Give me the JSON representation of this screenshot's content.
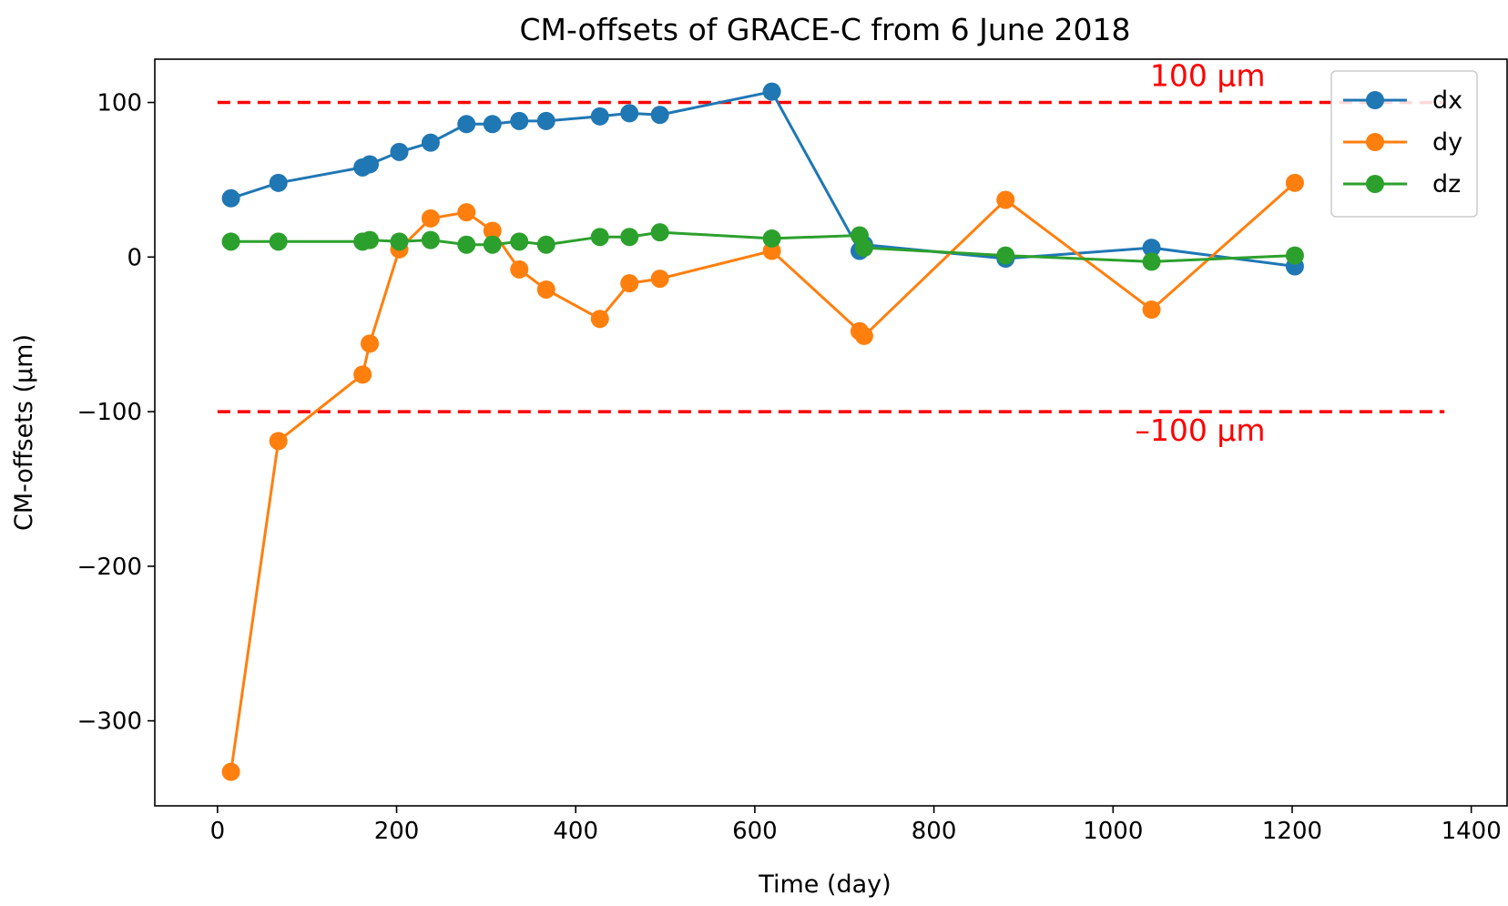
{
  "chart_data": {
    "type": "line",
    "title": "CM-offsets of GRACE-C from 6 June 2018",
    "xlabel": "Time (day)",
    "ylabel": "CM-offsets (µm)",
    "xlim": [
      -70,
      1440
    ],
    "ylim": [
      -355,
      128
    ],
    "xticks": [
      0,
      200,
      400,
      600,
      800,
      1000,
      1200,
      1400
    ],
    "xtick_labels": [
      "0",
      "200",
      "400",
      "600",
      "800",
      "1000",
      "1200",
      "1400"
    ],
    "yticks": [
      100,
      0,
      -100,
      -200,
      -300
    ],
    "ytick_labels": [
      "100",
      "0",
      "−100",
      "−200",
      "−300"
    ],
    "grid": false,
    "legend_position": "top-right",
    "reference_lines": [
      {
        "y": 100,
        "x_range": [
          0,
          1370
        ],
        "color": "#ff0000",
        "style": "dashed",
        "label": "100 µm"
      },
      {
        "y": -100,
        "x_range": [
          0,
          1370
        ],
        "color": "#ff0000",
        "style": "dashed",
        "label": "–100 µm"
      }
    ],
    "series": [
      {
        "name": "dx",
        "color": "#1f77b4",
        "x": [
          15,
          68,
          162,
          170,
          203,
          238,
          278,
          307,
          337,
          367,
          427,
          460,
          494,
          619,
          717,
          722,
          880,
          1043,
          1203
        ],
        "y": [
          38,
          48,
          58,
          60,
          68,
          74,
          86,
          86,
          88,
          88,
          91,
          93,
          92,
          107,
          4,
          8,
          -1,
          6,
          -6
        ]
      },
      {
        "name": "dy",
        "color": "#ff7f0e",
        "x": [
          15,
          68,
          162,
          170,
          203,
          238,
          278,
          307,
          337,
          367,
          427,
          460,
          494,
          619,
          717,
          722,
          880,
          1043,
          1203
        ],
        "y": [
          -333,
          -119,
          -76,
          -56,
          5,
          25,
          29,
          17,
          -8,
          -21,
          -40,
          -17,
          -14,
          4,
          -48,
          -51,
          37,
          -34,
          48
        ]
      },
      {
        "name": "dz",
        "color": "#2ca02c",
        "x": [
          15,
          68,
          162,
          170,
          203,
          238,
          278,
          307,
          337,
          367,
          427,
          460,
          494,
          619,
          717,
          722,
          880,
          1043,
          1203
        ],
        "y": [
          10,
          10,
          10,
          11,
          10,
          11,
          8,
          8,
          10,
          8,
          13,
          13,
          16,
          12,
          14,
          6,
          1,
          -3,
          1
        ]
      }
    ]
  }
}
